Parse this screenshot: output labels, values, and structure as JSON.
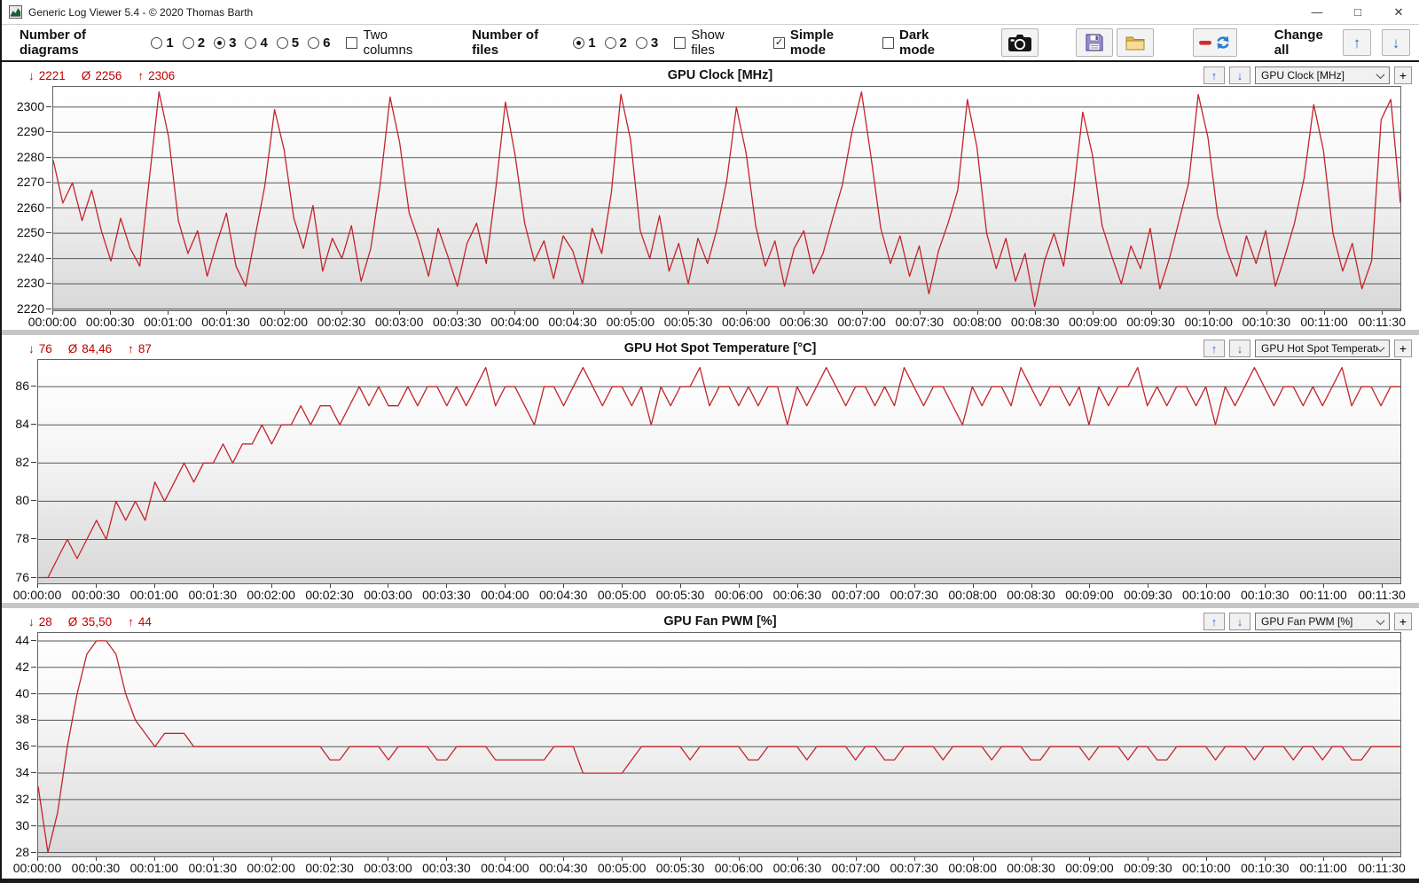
{
  "window": {
    "title": "Generic Log Viewer 5.4 - © 2020 Thomas Barth"
  },
  "icons": {
    "minimize": "—",
    "maximize": "□",
    "close": "✕",
    "check": "✓",
    "up_arrow": "↑",
    "down_arrow": "↓",
    "min_marker": "↓",
    "avg_marker": "Ø",
    "max_marker": "↑",
    "plus": "+"
  },
  "colors": {
    "line": "#c3242b",
    "stats_text": "#c00000",
    "grid": "#565656",
    "accent_blue": "#2b6cc8",
    "plot_border": "#636363"
  },
  "toolbar": {
    "diagrams_label": "Number of diagrams",
    "diagram_options": [
      "1",
      "2",
      "3",
      "4",
      "5",
      "6"
    ],
    "diagram_selected": "3",
    "two_columns_label": "Two columns",
    "two_columns_checked": false,
    "files_label": "Number of files",
    "file_options": [
      "1",
      "2",
      "3"
    ],
    "file_selected": "1",
    "show_files_label": "Show files",
    "show_files_checked": false,
    "simple_mode_label": "Simple mode",
    "simple_mode_checked": true,
    "dark_mode_label": "Dark mode",
    "dark_mode_checked": false,
    "change_all_label": "Change all"
  },
  "chart_data": [
    {
      "type": "line",
      "title": "GPU Clock [MHz]",
      "selector_value": "GPU Clock [MHz]",
      "stats": {
        "min": "2221",
        "avg": "2256",
        "max": "2306"
      },
      "x_step_s": 5,
      "x_end_s": 700,
      "x_tick_interval_s": 30,
      "x_tick_labels": [
        "00:00:00",
        "00:00:30",
        "00:01:00",
        "00:01:30",
        "00:02:00",
        "00:02:30",
        "00:03:00",
        "00:03:30",
        "00:04:00",
        "00:04:30",
        "00:05:00",
        "00:05:30",
        "00:06:00",
        "00:06:30",
        "00:07:00",
        "00:07:30",
        "00:08:00",
        "00:08:30",
        "00:09:00",
        "00:09:30",
        "00:10:00",
        "00:10:30",
        "00:11:00",
        "00:11:30"
      ],
      "ylim": [
        2219.5,
        2308
      ],
      "yticks": [
        2220,
        2230,
        2240,
        2250,
        2260,
        2270,
        2280,
        2290,
        2300
      ],
      "values": [
        2279,
        2262,
        2270,
        2255,
        2267,
        2251,
        2239,
        2256,
        2244,
        2237,
        2272,
        2306,
        2288,
        2255,
        2242,
        2251,
        2233,
        2246,
        2258,
        2237,
        2229,
        2249,
        2269,
        2299,
        2283,
        2256,
        2244,
        2261,
        2235,
        2248,
        2240,
        2253,
        2231,
        2244,
        2270,
        2304,
        2286,
        2258,
        2247,
        2233,
        2252,
        2241,
        2229,
        2246,
        2254,
        2238,
        2268,
        2302,
        2281,
        2254,
        2239,
        2247,
        2232,
        2249,
        2243,
        2230,
        2252,
        2242,
        2266,
        2305,
        2287,
        2251,
        2240,
        2257,
        2235,
        2246,
        2230,
        2248,
        2238,
        2252,
        2271,
        2300,
        2282,
        2253,
        2237,
        2247,
        2229,
        2244,
        2251,
        2234,
        2242,
        2256,
        2269,
        2290,
        2306,
        2280,
        2252,
        2238,
        2249,
        2233,
        2245,
        2226,
        2243,
        2254,
        2267,
        2303,
        2284,
        2250,
        2236,
        2248,
        2231,
        2242,
        2221,
        2239,
        2250,
        2237,
        2265,
        2298,
        2281,
        2253,
        2241,
        2230,
        2245,
        2236,
        2252,
        2228,
        2240,
        2255,
        2270,
        2305,
        2288,
        2257,
        2243,
        2233,
        2249,
        2238,
        2251,
        2229,
        2241,
        2254,
        2272,
        2301,
        2283,
        2250,
        2235,
        2246,
        2228,
        2239,
        2295,
        2303,
        2262
      ]
    },
    {
      "type": "line",
      "title": "GPU Hot Spot Temperature [°C]",
      "selector_value": "GPU Hot Spot Temperature [°C]",
      "stats": {
        "min": "76",
        "avg": "84,46",
        "max": "87"
      },
      "x_step_s": 5,
      "x_end_s": 700,
      "x_tick_interval_s": 30,
      "x_tick_labels": [
        "00:00:00",
        "00:00:30",
        "00:01:00",
        "00:01:30",
        "00:02:00",
        "00:02:30",
        "00:03:00",
        "00:03:30",
        "00:04:00",
        "00:04:30",
        "00:05:00",
        "00:05:30",
        "00:06:00",
        "00:06:30",
        "00:07:00",
        "00:07:30",
        "00:08:00",
        "00:08:30",
        "00:09:00",
        "00:09:30",
        "00:10:00",
        "00:10:30",
        "00:11:00",
        "00:11:30"
      ],
      "ylim": [
        75.7,
        87.4
      ],
      "yticks": [
        76,
        78,
        80,
        82,
        84,
        86
      ],
      "values": [
        76,
        76,
        77,
        78,
        77,
        78,
        79,
        78,
        80,
        79,
        80,
        79,
        81,
        80,
        81,
        82,
        81,
        82,
        82,
        83,
        82,
        83,
        83,
        84,
        83,
        84,
        84,
        85,
        84,
        85,
        85,
        84,
        85,
        86,
        85,
        86,
        85,
        85,
        86,
        85,
        86,
        86,
        85,
        86,
        85,
        86,
        87,
        85,
        86,
        86,
        85,
        84,
        86,
        86,
        85,
        86,
        87,
        86,
        85,
        86,
        86,
        85,
        86,
        84,
        86,
        85,
        86,
        86,
        87,
        85,
        86,
        86,
        85,
        86,
        85,
        86,
        86,
        84,
        86,
        85,
        86,
        87,
        86,
        85,
        86,
        86,
        85,
        86,
        85,
        87,
        86,
        85,
        86,
        86,
        85,
        84,
        86,
        85,
        86,
        86,
        85,
        87,
        86,
        85,
        86,
        86,
        85,
        86,
        84,
        86,
        85,
        86,
        86,
        87,
        85,
        86,
        85,
        86,
        86,
        85,
        86,
        84,
        86,
        85,
        86,
        87,
        86,
        85,
        86,
        86,
        85,
        86,
        85,
        86,
        87,
        85,
        86,
        86,
        85,
        86,
        86
      ]
    },
    {
      "type": "line",
      "title": "GPU Fan PWM [%]",
      "selector_value": "GPU Fan PWM [%]",
      "stats": {
        "min": "28",
        "avg": "35,50",
        "max": "44"
      },
      "x_step_s": 5,
      "x_end_s": 700,
      "x_tick_interval_s": 30,
      "x_tick_labels": [
        "00:00:00",
        "00:00:30",
        "00:01:00",
        "00:01:30",
        "00:02:00",
        "00:02:30",
        "00:03:00",
        "00:03:30",
        "00:04:00",
        "00:04:30",
        "00:05:00",
        "00:05:30",
        "00:06:00",
        "00:06:30",
        "00:07:00",
        "00:07:30",
        "00:08:00",
        "00:08:30",
        "00:09:00",
        "00:09:30",
        "00:10:00",
        "00:10:30",
        "00:11:00",
        "00:11:30"
      ],
      "ylim": [
        27.7,
        44.6
      ],
      "yticks": [
        28,
        30,
        32,
        34,
        36,
        38,
        40,
        42,
        44
      ],
      "values": [
        33,
        28,
        31,
        36,
        40,
        43,
        44,
        44,
        43,
        40,
        38,
        37,
        36,
        37,
        37,
        37,
        36,
        36,
        36,
        36,
        36,
        36,
        36,
        36,
        36,
        36,
        36,
        36,
        36,
        36,
        35,
        35,
        36,
        36,
        36,
        36,
        35,
        36,
        36,
        36,
        36,
        35,
        35,
        36,
        36,
        36,
        36,
        35,
        35,
        35,
        35,
        35,
        35,
        36,
        36,
        36,
        34,
        34,
        34,
        34,
        34,
        35,
        36,
        36,
        36,
        36,
        36,
        35,
        36,
        36,
        36,
        36,
        36,
        35,
        35,
        36,
        36,
        36,
        36,
        35,
        36,
        36,
        36,
        36,
        35,
        36,
        36,
        35,
        35,
        36,
        36,
        36,
        36,
        35,
        36,
        36,
        36,
        36,
        35,
        36,
        36,
        36,
        35,
        35,
        36,
        36,
        36,
        36,
        35,
        36,
        36,
        36,
        35,
        36,
        36,
        35,
        35,
        36,
        36,
        36,
        36,
        35,
        36,
        36,
        36,
        35,
        36,
        36,
        36,
        35,
        36,
        36,
        35,
        36,
        36,
        35,
        35,
        36,
        36,
        36,
        36
      ]
    }
  ]
}
